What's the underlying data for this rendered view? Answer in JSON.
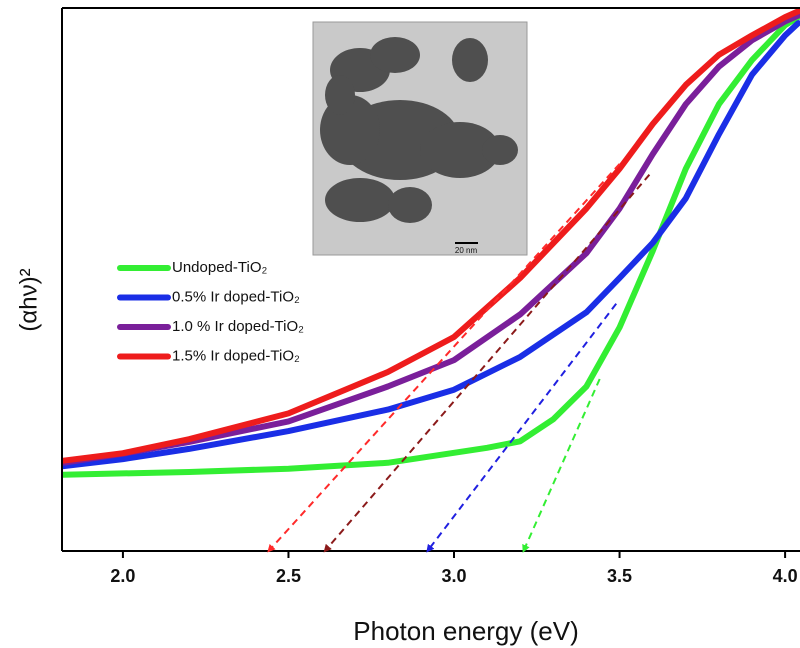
{
  "chart_data": {
    "type": "line",
    "x_label": "Photon energy (eV)",
    "y_label": "(αhν)²",
    "xlim": [
      1.816,
      4.045
    ],
    "ylim": [
      0,
      101
    ],
    "xticks": [
      {
        "value": 2,
        "label": "2.0"
      },
      {
        "value": 2.5,
        "label": "2.5"
      },
      {
        "value": 3,
        "label": "3.0"
      },
      {
        "value": 3.5,
        "label": "3.5"
      },
      {
        "value": 4,
        "label": "4.0"
      }
    ],
    "series": [
      {
        "name": "Undoped-TiO₂",
        "color": "#33ee33",
        "x": [
          1.82,
          2.2,
          2.5,
          2.8,
          3.1,
          3.2,
          3.3,
          3.4,
          3.5,
          3.6,
          3.7,
          3.8,
          3.9,
          4.0,
          4.04
        ],
        "values": [
          14.2,
          14.7,
          15.3,
          16.4,
          19.2,
          20.4,
          24.5,
          30.6,
          41.6,
          55.8,
          71.1,
          83.1,
          91.3,
          97.8,
          99.3
        ]
      },
      {
        "name": "0.5% Ir doped-TiO₂",
        "color": "#1a2ee6",
        "x": [
          1.82,
          2.0,
          2.2,
          2.5,
          2.8,
          3.0,
          3.2,
          3.4,
          3.5,
          3.6,
          3.7,
          3.8,
          3.9,
          4.0,
          4.04
        ],
        "values": [
          15.8,
          17.1,
          19.0,
          22.3,
          26.3,
          30.0,
          36.1,
          44.4,
          50.8,
          57.3,
          65.6,
          77.5,
          88.6,
          95.9,
          98.2
        ]
      },
      {
        "name": "1.0 % Ir doped-TiO₂",
        "color": "#7a1f9a",
        "x": [
          1.82,
          2.0,
          2.2,
          2.5,
          2.8,
          3.0,
          3.2,
          3.4,
          3.5,
          3.6,
          3.7,
          3.8,
          3.9,
          4.0,
          4.04
        ],
        "values": [
          16.4,
          18.1,
          20.3,
          24.1,
          30.6,
          35.5,
          44.0,
          55.4,
          63.7,
          73.8,
          83.1,
          90.1,
          95.0,
          98.5,
          99.6
        ]
      },
      {
        "name": "1.5% Ir doped-TiO₂",
        "color": "#ee1c1c",
        "x": [
          1.82,
          2.0,
          2.2,
          2.5,
          2.8,
          3.0,
          3.2,
          3.4,
          3.5,
          3.6,
          3.7,
          3.8,
          3.9,
          4.0,
          4.04
        ],
        "values": [
          16.8,
          18.2,
          20.8,
          25.6,
          33.3,
          39.8,
          50.8,
          63.7,
          71.1,
          79.4,
          86.7,
          92.3,
          95.9,
          99.3,
          100.4
        ]
      }
    ],
    "tangents": [
      {
        "color": "#33ee33",
        "x": [
          3.44,
          3.21
        ],
        "values": [
          32,
          0
        ]
      },
      {
        "color": "#2020e0",
        "x": [
          3.49,
          2.92
        ],
        "values": [
          46,
          0
        ]
      },
      {
        "color": "#8b1a1a",
        "x": [
          3.59,
          2.61
        ],
        "values": [
          70,
          0
        ]
      },
      {
        "color": "#ff2a2a",
        "x": [
          3.5,
          2.44
        ],
        "values": [
          72,
          0
        ]
      }
    ],
    "inset_scale_label": "20 nm"
  }
}
